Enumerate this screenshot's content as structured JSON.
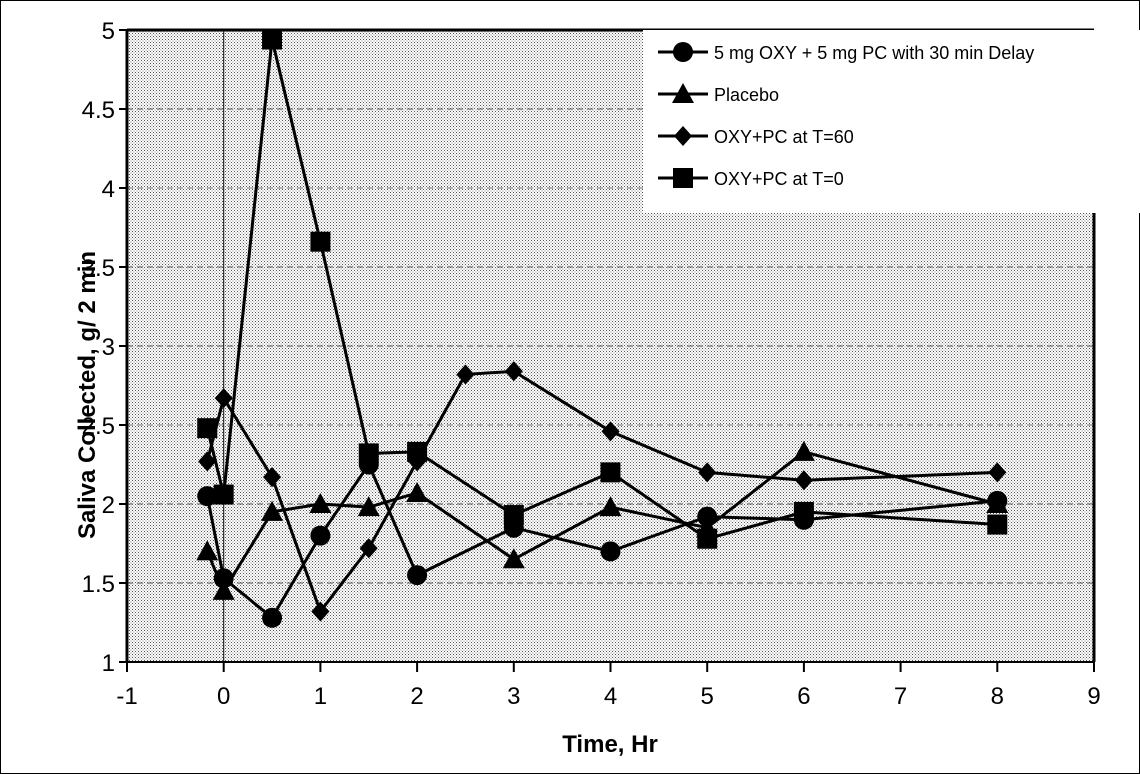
{
  "chart_data": {
    "type": "line",
    "title": "",
    "xlabel": "Time, Hr",
    "ylabel": "Saliva Collected, g/ 2 min",
    "xlim": [
      -1,
      9
    ],
    "ylim": [
      1,
      5
    ],
    "x_ticks": [
      "-1",
      "0",
      "1",
      "2",
      "3",
      "4",
      "5",
      "6",
      "7",
      "8",
      "9"
    ],
    "y_ticks": [
      "1",
      "1.5",
      "2",
      "2.5",
      "3",
      "3.5",
      "4",
      "4.5",
      "5"
    ],
    "grid": "horizontal dashed",
    "legend_position": "top-right",
    "background": "dotted gray",
    "series": [
      {
        "name": "5 mg OXY + 5 mg PC with 30 min Delay",
        "marker": "circle",
        "x": [
          -0.17,
          0,
          0.5,
          1,
          1.5,
          2,
          3,
          4,
          5,
          6,
          8
        ],
        "y": [
          2.05,
          1.53,
          1.28,
          1.8,
          2.25,
          1.55,
          1.85,
          1.7,
          1.92,
          1.9,
          2.02
        ]
      },
      {
        "name": "Placebo",
        "marker": "triangle",
        "x": [
          -0.17,
          0,
          0.5,
          1,
          1.5,
          2,
          3,
          4,
          5,
          6,
          8
        ],
        "y": [
          1.7,
          1.45,
          1.95,
          2.0,
          1.98,
          2.07,
          1.65,
          1.98,
          1.85,
          2.33,
          2.0
        ]
      },
      {
        "name": "OXY+PC at T=60",
        "marker": "diamond",
        "x": [
          -0.17,
          0,
          0.5,
          1,
          1.5,
          2,
          2.5,
          3,
          4,
          5,
          6,
          8
        ],
        "y": [
          2.27,
          2.67,
          2.17,
          1.32,
          1.72,
          2.27,
          2.82,
          2.84,
          2.46,
          2.2,
          2.15,
          2.2
        ]
      },
      {
        "name": "OXY+PC at T=0",
        "marker": "square",
        "x": [
          -0.17,
          0,
          0.5,
          1,
          1.5,
          2,
          3,
          4,
          5,
          6,
          8
        ],
        "y": [
          2.48,
          2.06,
          4.94,
          3.66,
          2.32,
          2.33,
          1.93,
          2.2,
          1.78,
          1.95,
          1.87
        ]
      }
    ]
  }
}
